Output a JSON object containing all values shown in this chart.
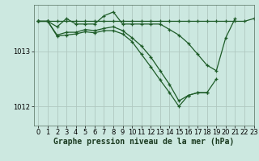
{
  "background_color": "#cce8e0",
  "grid_color": "#b0c8c0",
  "line_color": "#1e5c28",
  "xlabel": "Graphe pression niveau de la mer (hPa)",
  "xlabel_fontsize": 7,
  "tick_fontsize": 6,
  "xlim": [
    -0.5,
    23
  ],
  "ylim": [
    1011.65,
    1013.85
  ],
  "yticks": [
    1012,
    1013
  ],
  "xticks": [
    0,
    1,
    2,
    3,
    4,
    5,
    6,
    7,
    8,
    9,
    10,
    11,
    12,
    13,
    14,
    15,
    16,
    17,
    18,
    19,
    20,
    21,
    22,
    23
  ],
  "series": [
    {
      "x": [
        0,
        1,
        2,
        3,
        4,
        5,
        6,
        7,
        8,
        9,
        10,
        11,
        12,
        13,
        14,
        15,
        16,
        17,
        18,
        19,
        20,
        21,
        22,
        23
      ],
      "y": [
        1013.55,
        1013.55,
        1013.55,
        1013.55,
        1013.55,
        1013.55,
        1013.55,
        1013.55,
        1013.55,
        1013.55,
        1013.55,
        1013.55,
        1013.55,
        1013.55,
        1013.55,
        1013.55,
        1013.55,
        1013.55,
        1013.55,
        1013.55,
        1013.55,
        1013.55,
        1013.55,
        1013.6
      ]
    },
    {
      "x": [
        0,
        1,
        2,
        3,
        4,
        5,
        6,
        7,
        8,
        9,
        10,
        11,
        12,
        13,
        14,
        15,
        16,
        17,
        18,
        19,
        20,
        21
      ],
      "y": [
        1013.55,
        1013.55,
        1013.45,
        1013.6,
        1013.5,
        1013.5,
        1013.5,
        1013.65,
        1013.72,
        1013.5,
        1013.5,
        1013.5,
        1013.5,
        1013.5,
        1013.4,
        1013.3,
        1013.15,
        1012.95,
        1012.75,
        1012.65,
        1013.25,
        1013.6
      ]
    },
    {
      "x": [
        0,
        1,
        2,
        3,
        4,
        5,
        6,
        7,
        8,
        9,
        10,
        11,
        12,
        13,
        14,
        15,
        16,
        17,
        18,
        19
      ],
      "y": [
        1013.55,
        1013.55,
        1013.3,
        1013.35,
        1013.35,
        1013.4,
        1013.38,
        1013.42,
        1013.45,
        1013.38,
        1013.25,
        1013.1,
        1012.9,
        1012.65,
        1012.4,
        1012.1,
        1012.2,
        1012.25,
        1012.25,
        1012.5
      ]
    },
    {
      "x": [
        0,
        1,
        2,
        3,
        4,
        5,
        6,
        7,
        8,
        9,
        10,
        11,
        12,
        13,
        14,
        15,
        16,
        17,
        18
      ],
      "y": [
        1013.55,
        1013.55,
        1013.28,
        1013.3,
        1013.32,
        1013.36,
        1013.34,
        1013.38,
        1013.38,
        1013.32,
        1013.18,
        1012.95,
        1012.72,
        1012.48,
        1012.25,
        1012.0,
        1012.2,
        1012.25,
        1012.25
      ]
    }
  ]
}
